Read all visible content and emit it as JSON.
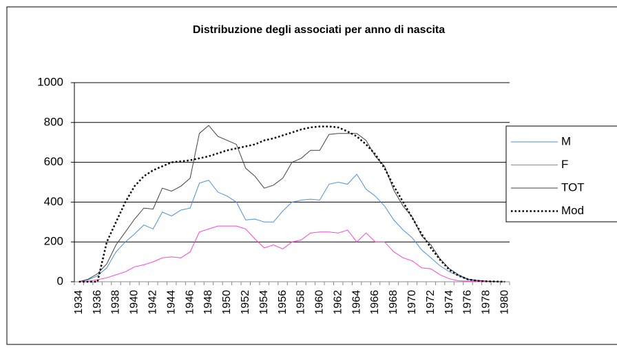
{
  "chart_data": {
    "type": "line",
    "title": "Distribuzione degli associati per anno di nascita",
    "categories": [
      "1934",
      null,
      "1936",
      null,
      "1938",
      null,
      "1940",
      null,
      "1942",
      null,
      "1944",
      null,
      "1946",
      null,
      "1948",
      null,
      "1950",
      null,
      "1952",
      null,
      "1954",
      null,
      "1956",
      null,
      "1958",
      null,
      "1960",
      null,
      "1962",
      null,
      "1964",
      null,
      "1966",
      null,
      "1968",
      null,
      "1970",
      null,
      "1972",
      null,
      "1974",
      null,
      "1976",
      null,
      "1978",
      null,
      "1980"
    ],
    "series": [
      {
        "name": "M",
        "color": "#4f8fd6",
        "style": "solid",
        "values": [
          0,
          10,
          30,
          70,
          150,
          200,
          240,
          285,
          265,
          350,
          330,
          360,
          370,
          495,
          510,
          450,
          430,
          400,
          310,
          315,
          300,
          300,
          355,
          400,
          410,
          415,
          410,
          490,
          500,
          490,
          540,
          465,
          430,
          380,
          310,
          260,
          220,
          160,
          120,
          80,
          50,
          30,
          10,
          5,
          2,
          1,
          0
        ]
      },
      {
        "name": "F",
        "color": "#ff44cc",
        "style": "solid",
        "values": [
          0,
          3,
          10,
          20,
          35,
          50,
          75,
          85,
          100,
          120,
          125,
          120,
          150,
          250,
          265,
          280,
          280,
          280,
          265,
          215,
          170,
          185,
          165,
          200,
          210,
          245,
          250,
          250,
          245,
          260,
          200,
          245,
          200,
          200,
          150,
          120,
          105,
          70,
          65,
          35,
          15,
          5,
          3,
          2,
          1,
          0,
          0
        ]
      },
      {
        "name": "TOT",
        "color": "#404040",
        "style": "solid",
        "values": [
          0,
          13,
          40,
          90,
          185,
          250,
          315,
          370,
          365,
          470,
          455,
          480,
          520,
          745,
          785,
          730,
          710,
          690,
          570,
          530,
          470,
          485,
          520,
          600,
          620,
          660,
          660,
          740,
          745,
          745,
          745,
          710,
          630,
          580,
          460,
          380,
          325,
          230,
          185,
          115,
          65,
          35,
          13,
          7,
          3,
          1,
          0
        ]
      },
      {
        "name": "Mod",
        "color": "#000000",
        "style": "dotted",
        "values": [
          0,
          0,
          0,
          200,
          300,
          400,
          480,
          530,
          560,
          580,
          600,
          605,
          610,
          620,
          630,
          645,
          660,
          670,
          680,
          690,
          710,
          720,
          735,
          750,
          765,
          775,
          780,
          780,
          775,
          755,
          730,
          690,
          640,
          570,
          480,
          400,
          320,
          240,
          170,
          110,
          60,
          30,
          12,
          5,
          2,
          1,
          0
        ]
      }
    ],
    "ylim": [
      0,
      1000
    ],
    "yticks": [
      0,
      200,
      400,
      600,
      800,
      1000
    ],
    "grid": true,
    "legend": "right"
  }
}
